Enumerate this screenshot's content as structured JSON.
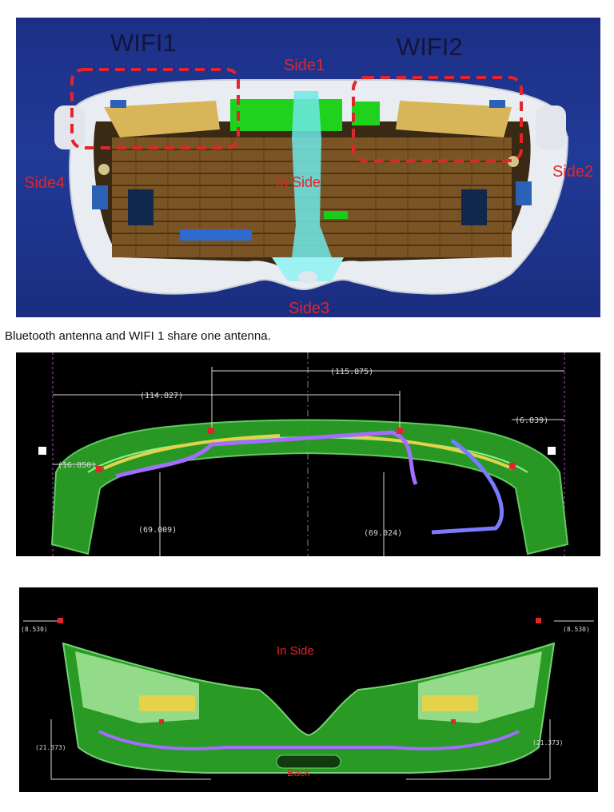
{
  "panel_top": {
    "wifi1": "WIFI1",
    "wifi2": "WIFI2",
    "side1": "Side1",
    "side2": "Side2",
    "side3": "Side3",
    "side4": "Side4",
    "in_side": "In Side"
  },
  "caption": "Bluetooth antenna and WIFI 1 share one antenna.",
  "panel_mid": {
    "dim_top": "(115.875)",
    "dim_left_span": "(114.827)",
    "dim_right_edge": "(6.839)",
    "dim_left_edge": "(16.850)",
    "dim_center_left": "(69.009)",
    "dim_center_right": "(69.024)"
  },
  "panel_bottom": {
    "in_side": "In Side",
    "back": "Back",
    "dim_top_left": "(8.530)",
    "dim_top_right": "(8.530)",
    "dim_height_left": "(21.373)",
    "dim_height_right": "(21.373)"
  },
  "colors": {
    "background_blue": "#1f3590",
    "dashed_red": "#e0262b",
    "label_red": "#e0262b",
    "shell_green": "#2fb52a",
    "cable_purple": "#a46cff",
    "antenna_yellow": "#e3d24a"
  }
}
